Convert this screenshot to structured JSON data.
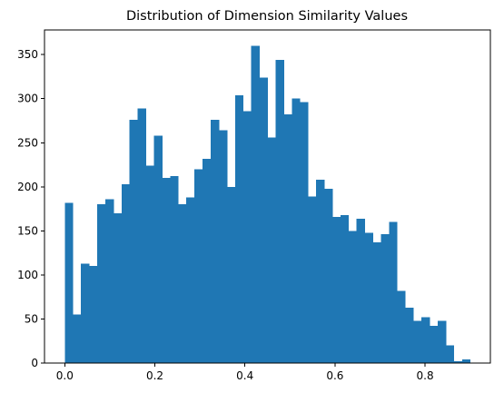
{
  "chart_data": {
    "type": "bar",
    "title": "Distribution of Dimension Similarity Values",
    "xlabel": "",
    "ylabel": "",
    "xlim": [
      -0.045,
      0.945
    ],
    "ylim": [
      0,
      378
    ],
    "grid": false,
    "bin_start": 0.0,
    "bin_width": 0.018,
    "values": [
      182,
      55,
      113,
      110,
      180,
      186,
      170,
      203,
      276,
      289,
      224,
      258,
      210,
      212,
      180,
      188,
      220,
      232,
      276,
      264,
      200,
      304,
      286,
      360,
      324,
      256,
      344,
      282,
      300,
      296,
      189,
      208,
      198,
      166,
      168,
      150,
      164,
      148,
      137,
      146,
      160,
      82,
      63,
      48,
      52,
      42,
      48,
      20,
      2,
      4
    ],
    "xticks": [
      0.0,
      0.2,
      0.4,
      0.6,
      0.8
    ],
    "xtick_labels": [
      "0.0",
      "0.2",
      "0.4",
      "0.6",
      "0.8"
    ],
    "yticks": [
      0,
      50,
      100,
      150,
      200,
      250,
      300,
      350
    ],
    "ytick_labels": [
      "0",
      "50",
      "100",
      "150",
      "200",
      "250",
      "300",
      "350"
    ],
    "bar_color": "#1f77b4"
  }
}
